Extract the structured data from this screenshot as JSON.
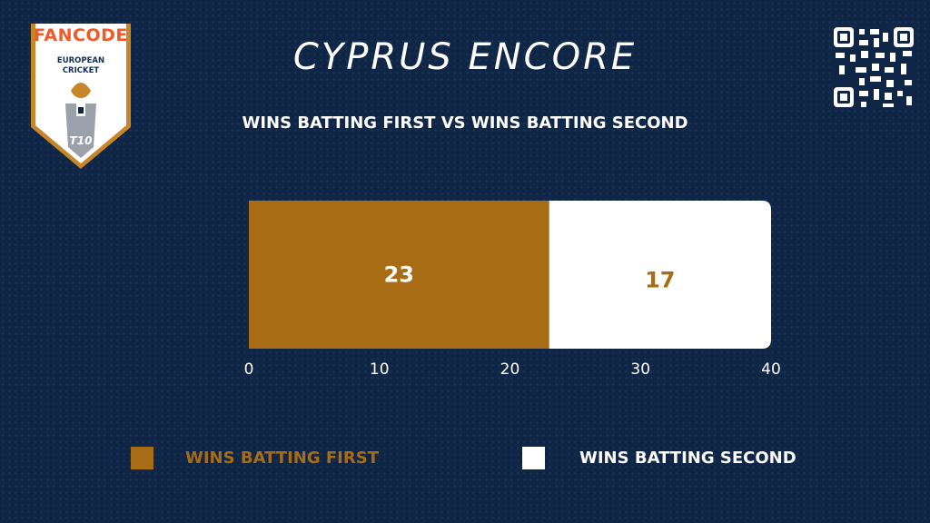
{
  "logo": {
    "brand": "FANCODE",
    "league": "EUROPEAN\nCRICKET",
    "format": "T10"
  },
  "header": {
    "title": "CYPRUS ENCORE",
    "subtitle": "WINS BATTING FIRST VS WINS BATTING SECOND"
  },
  "colors": {
    "background": "#0f2647",
    "first": "#a86d14",
    "second": "#ffffff",
    "text": "#ffffff"
  },
  "qr": {
    "icon": "qr-code-icon"
  },
  "chart_data": {
    "type": "bar",
    "orientation": "horizontal",
    "stacked": true,
    "categories": [
      ""
    ],
    "series": [
      {
        "name": "WINS BATTING FIRST",
        "values": [
          23
        ],
        "color": "#a86d14",
        "label_color": "#ffffff"
      },
      {
        "name": "WINS BATTING SECOND",
        "values": [
          17
        ],
        "color": "#ffffff",
        "label_color": "#a86d14"
      }
    ],
    "xlim": [
      0,
      40
    ],
    "xticks": [
      0,
      10,
      20,
      30,
      40
    ],
    "grid": false,
    "legend_position": "bottom"
  }
}
